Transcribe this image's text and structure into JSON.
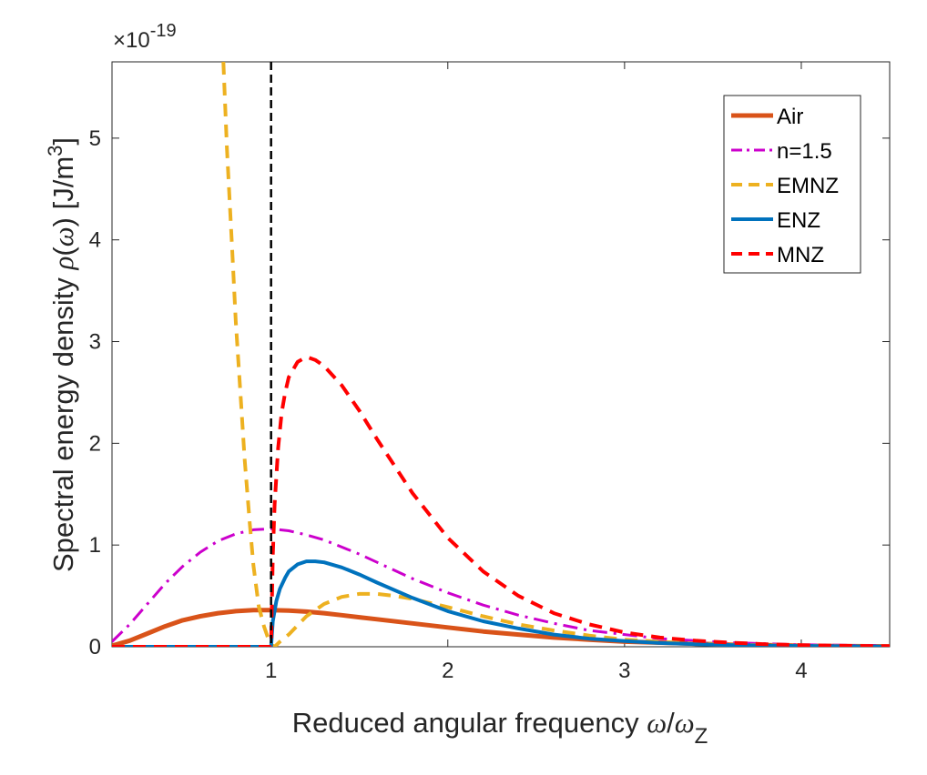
{
  "chart_data": {
    "type": "line",
    "xlabel_prefix": "Reduced angular frequency ",
    "xlabel_omega": "ω",
    "xlabel_slash": "/",
    "xlabel_omega2": "ω",
    "xlabel_sub": "Z",
    "ylabel_prefix": "Spectral energy density ",
    "ylabel_rho": "ρ",
    "ylabel_mid": "(",
    "ylabel_omega": "ω",
    "ylabel_units": ") [J/m",
    "ylabel_sup": "3",
    "ylabel_close": "]",
    "exponent_base": "×10",
    "exponent_power": "-19",
    "xlim": [
      0.1,
      4.5
    ],
    "ylim": [
      0,
      5.75
    ],
    "xticks": [
      1,
      2,
      3,
      4
    ],
    "xtick_labels": [
      "1",
      "2",
      "3",
      "4"
    ],
    "yticks": [
      0,
      1,
      2,
      3,
      4,
      5
    ],
    "ytick_labels": [
      "0",
      "1",
      "2",
      "3",
      "4",
      "5"
    ],
    "vline_x": 1.0,
    "legend_position": "top-right",
    "series": [
      {
        "name": "Air",
        "color": "#D95319",
        "style": "solid",
        "width": 5,
        "x": [
          0.1,
          0.2,
          0.3,
          0.4,
          0.5,
          0.6,
          0.7,
          0.8,
          0.9,
          1.0,
          1.1,
          1.2,
          1.3,
          1.4,
          1.5,
          1.6,
          1.8,
          2.0,
          2.2,
          2.4,
          2.6,
          2.8,
          3.0,
          3.2,
          3.4,
          3.6,
          3.8,
          4.0,
          4.2,
          4.5
        ],
        "y": [
          0.01,
          0.06,
          0.13,
          0.2,
          0.26,
          0.3,
          0.33,
          0.35,
          0.36,
          0.36,
          0.355,
          0.345,
          0.33,
          0.31,
          0.29,
          0.27,
          0.23,
          0.19,
          0.15,
          0.12,
          0.09,
          0.07,
          0.05,
          0.04,
          0.03,
          0.02,
          0.015,
          0.01,
          0.007,
          0.004
        ]
      },
      {
        "name": "n=1.5",
        "color": "#CC00CC",
        "style": "dashdot",
        "width": 3,
        "x": [
          0.1,
          0.2,
          0.3,
          0.4,
          0.5,
          0.6,
          0.7,
          0.8,
          0.9,
          1.0,
          1.1,
          1.2,
          1.3,
          1.4,
          1.5,
          1.6,
          1.8,
          2.0,
          2.2,
          2.4,
          2.6,
          2.8,
          3.0,
          3.2,
          3.4,
          3.6,
          3.8,
          4.0,
          4.2,
          4.5
        ],
        "y": [
          0.05,
          0.22,
          0.42,
          0.62,
          0.79,
          0.93,
          1.04,
          1.11,
          1.15,
          1.16,
          1.14,
          1.1,
          1.05,
          0.98,
          0.91,
          0.83,
          0.67,
          0.53,
          0.41,
          0.31,
          0.23,
          0.16,
          0.12,
          0.08,
          0.06,
          0.04,
          0.03,
          0.02,
          0.015,
          0.01
        ]
      },
      {
        "name": "EMNZ",
        "color": "#EDB120",
        "style": "dashed",
        "width": 4,
        "x": [
          0.73,
          0.75,
          0.78,
          0.8,
          0.83,
          0.85,
          0.88,
          0.9,
          0.93,
          0.96,
          0.98,
          1.0,
          1.02,
          1.05,
          1.1,
          1.15,
          1.2,
          1.3,
          1.4,
          1.5,
          1.6,
          1.7,
          1.8,
          2.0,
          2.2,
          2.4,
          2.6,
          2.8,
          3.0,
          3.2,
          3.4,
          3.6,
          3.8,
          4.0,
          4.2,
          4.5
        ],
        "y": [
          5.75,
          4.9,
          3.9,
          3.2,
          2.4,
          1.85,
          1.2,
          0.8,
          0.4,
          0.2,
          0.1,
          0.02,
          0.0,
          0.05,
          0.12,
          0.21,
          0.3,
          0.42,
          0.49,
          0.52,
          0.52,
          0.5,
          0.47,
          0.39,
          0.3,
          0.22,
          0.16,
          0.11,
          0.07,
          0.05,
          0.03,
          0.02,
          0.015,
          0.01,
          0.007,
          0.004
        ]
      },
      {
        "name": "ENZ",
        "color": "#0072BD",
        "style": "solid",
        "width": 4,
        "x": [
          0.1,
          0.5,
          0.99,
          1.0,
          1.01,
          1.03,
          1.05,
          1.08,
          1.1,
          1.15,
          1.2,
          1.25,
          1.3,
          1.4,
          1.5,
          1.6,
          1.8,
          2.0,
          2.2,
          2.4,
          2.6,
          2.8,
          3.0,
          3.2,
          3.4,
          3.6,
          3.8,
          4.0,
          4.2,
          4.5
        ],
        "y": [
          0,
          0,
          0,
          0,
          0.25,
          0.45,
          0.57,
          0.68,
          0.74,
          0.81,
          0.84,
          0.84,
          0.83,
          0.78,
          0.71,
          0.63,
          0.48,
          0.35,
          0.25,
          0.18,
          0.12,
          0.08,
          0.055,
          0.037,
          0.025,
          0.017,
          0.011,
          0.008,
          0.005,
          0.003
        ]
      },
      {
        "name": "MNZ",
        "color": "#FF0000",
        "style": "dashed",
        "width": 4,
        "x": [
          0.1,
          0.5,
          0.99,
          1.0,
          1.01,
          1.02,
          1.04,
          1.06,
          1.08,
          1.1,
          1.15,
          1.2,
          1.25,
          1.3,
          1.4,
          1.5,
          1.6,
          1.8,
          2.0,
          2.2,
          2.4,
          2.6,
          2.8,
          3.0,
          3.2,
          3.4,
          3.6,
          3.8,
          4.0,
          4.2,
          4.5
        ],
        "y": [
          0,
          0,
          0,
          0,
          0.9,
          1.4,
          1.95,
          2.3,
          2.5,
          2.65,
          2.8,
          2.85,
          2.82,
          2.76,
          2.57,
          2.32,
          2.04,
          1.51,
          1.07,
          0.74,
          0.5,
          0.33,
          0.22,
          0.14,
          0.09,
          0.06,
          0.04,
          0.025,
          0.016,
          0.01,
          0.005
        ]
      }
    ]
  }
}
